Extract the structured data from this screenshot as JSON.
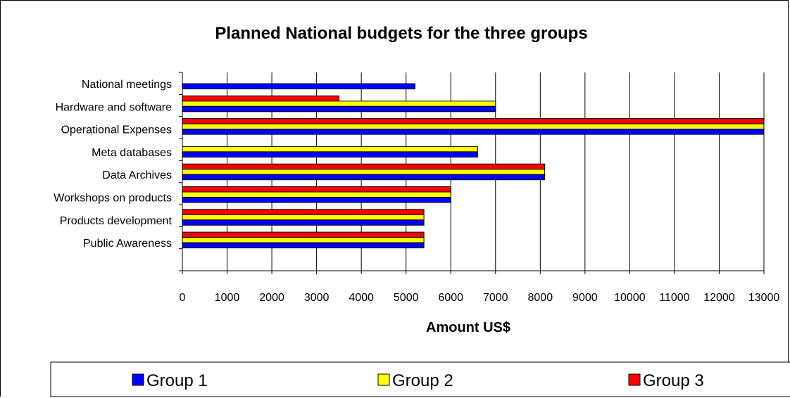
{
  "chart_data": {
    "type": "bar",
    "orientation": "horizontal",
    "title": "Planned National budgets for the three groups",
    "xlabel": "Amount US$",
    "ylabel": "",
    "categories": [
      "National meetings",
      "Hardware and software",
      "Operational Expenses",
      "Meta databases",
      "Data Archives",
      "Workshops on products",
      "Products development",
      "Public Awareness"
    ],
    "series": [
      {
        "name": "Group 1",
        "color": "#0000ff",
        "values": [
          5200,
          7000,
          13000,
          6600,
          8100,
          6000,
          5400,
          5400
        ]
      },
      {
        "name": "Group 2",
        "color": "#ffff00",
        "values": [
          0,
          7000,
          13000,
          6600,
          8100,
          6000,
          5400,
          5400
        ]
      },
      {
        "name": "Group 3",
        "color": "#ff0000",
        "values": [
          0,
          3500,
          13000,
          0,
          8100,
          6000,
          5400,
          5400
        ]
      }
    ],
    "xlim": [
      0,
      13000
    ],
    "xticks": [
      "0",
      "1000",
      "2000",
      "3000",
      "4000",
      "5000",
      "6000",
      "7000",
      "8000",
      "9000",
      "10000",
      "11000",
      "12000",
      "13000"
    ],
    "grid": "vertical",
    "legend": "bottom"
  }
}
